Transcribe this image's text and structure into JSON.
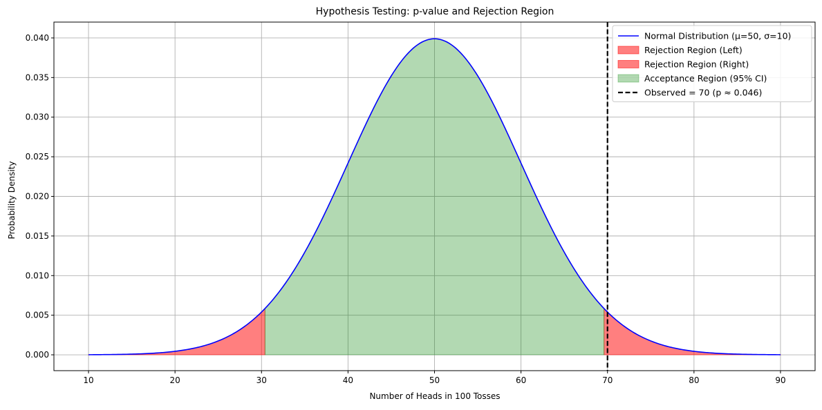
{
  "chart_data": {
    "type": "area",
    "title": "Hypothesis Testing: p-value and Rejection Region",
    "xlabel": "Number of Heads in 100 Tosses",
    "ylabel": "Probability Density",
    "xlim": [
      6,
      94
    ],
    "ylim": [
      -0.002,
      0.042
    ],
    "x_ticks": [
      10,
      20,
      30,
      40,
      50,
      60,
      70,
      80,
      90
    ],
    "y_ticks": [
      0.0,
      0.005,
      0.01,
      0.015,
      0.02,
      0.025,
      0.03,
      0.035,
      0.04
    ],
    "x_tick_labels": [
      "10",
      "20",
      "30",
      "40",
      "50",
      "60",
      "70",
      "80",
      "90"
    ],
    "y_tick_labels": [
      "0.000",
      "0.005",
      "0.010",
      "0.015",
      "0.020",
      "0.025",
      "0.030",
      "0.035",
      "0.040"
    ],
    "grid": true,
    "legend_position": "top-right",
    "distribution": {
      "mean": 50,
      "std": 10,
      "x_range": [
        10,
        90
      ]
    },
    "series": [
      {
        "name": "Normal Distribution (μ=50, σ=10)",
        "kind": "line",
        "color": "#0000ff"
      },
      {
        "name": "Rejection Region (Left)",
        "kind": "fill",
        "x_range": [
          10,
          30.4
        ],
        "color": "#ff0000",
        "alpha": 0.5
      },
      {
        "name": "Rejection Region (Right)",
        "kind": "fill",
        "x_range": [
          69.6,
          90
        ],
        "color": "#ff0000",
        "alpha": 0.5
      },
      {
        "name": "Acceptance Region (95% CI)",
        "kind": "fill",
        "x_range": [
          30.4,
          69.6
        ],
        "color": "#008000",
        "alpha": 0.3
      },
      {
        "name": "Observed = 70 (p ≈ 0.046)",
        "kind": "vline",
        "x": 70,
        "color": "#000000",
        "style": "dashed"
      }
    ]
  }
}
